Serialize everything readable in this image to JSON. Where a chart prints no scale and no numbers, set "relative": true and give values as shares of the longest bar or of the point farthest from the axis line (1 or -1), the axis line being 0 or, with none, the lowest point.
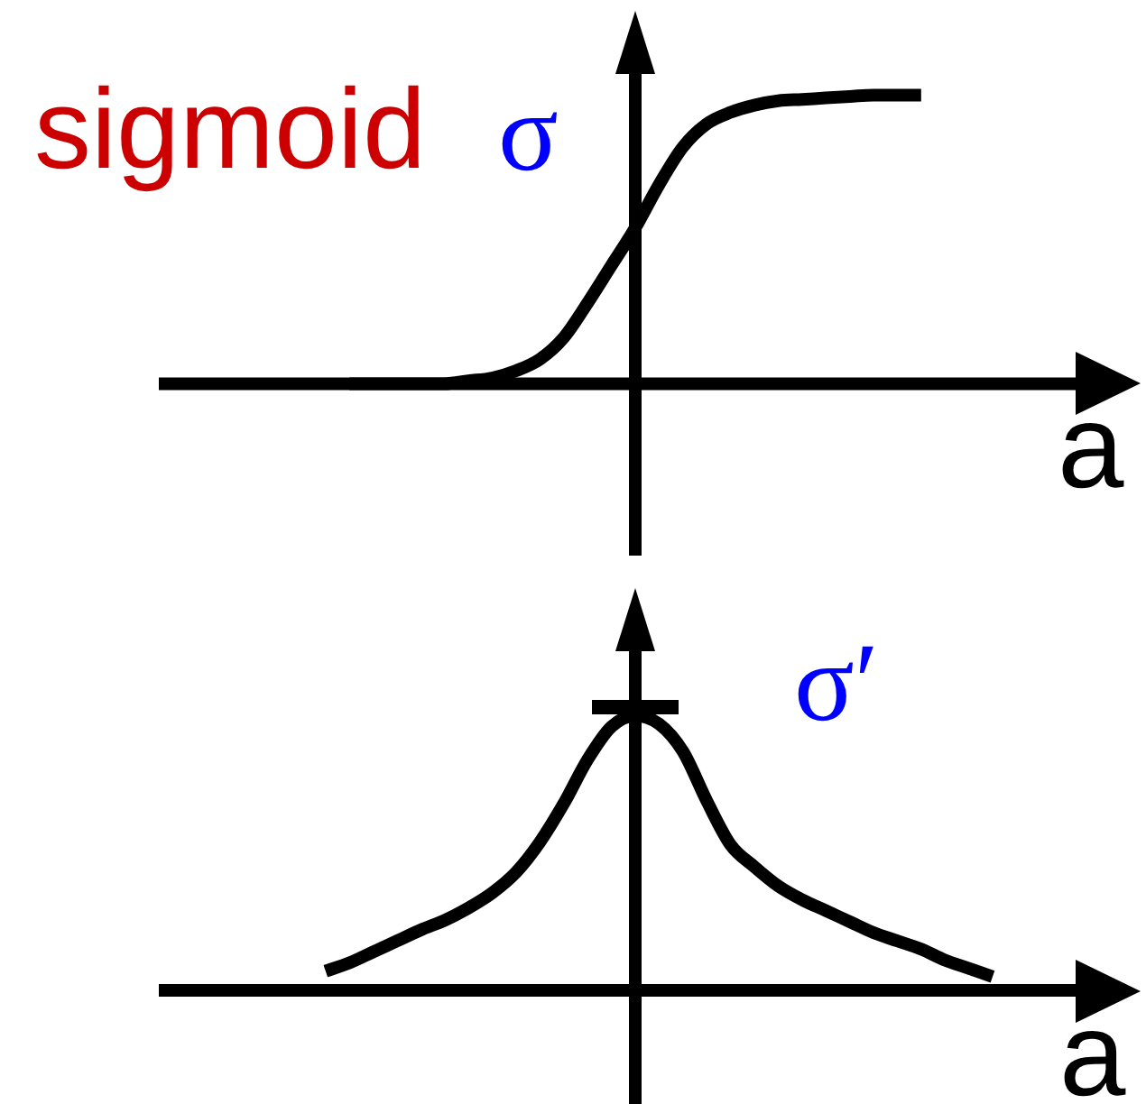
{
  "chart_data": [
    {
      "type": "line",
      "title": "sigmoid",
      "ylabel": "σ",
      "xlabel": "a",
      "relative": true,
      "marker": "none",
      "line_style": "solid",
      "tick_labels": false,
      "categories": [
        null,
        null,
        null,
        null,
        null,
        null,
        null,
        null,
        null,
        null,
        null,
        null,
        null,
        null,
        null,
        null,
        null,
        null,
        null,
        null,
        null,
        null,
        null,
        null,
        null,
        null,
        null,
        null,
        null,
        null,
        null,
        null,
        null,
        null,
        null,
        null,
        null,
        null,
        null,
        null,
        null
      ],
      "series": [
        {
          "color": "#000000",
          "values": [
            null,
            null,
            null,
            null,
            null,
            null,
            null,
            null,
            0,
            0,
            0,
            0,
            0,
            0.01,
            0.02,
            0.045,
            0.085,
            0.16,
            0.28,
            0.41,
            0.54,
            0.69,
            0.82,
            0.9,
            0.94,
            0.965,
            0.98,
            0.985,
            0.99,
            0.995,
            1,
            1,
            1,
            null,
            null,
            null,
            null,
            null,
            null,
            null,
            null
          ]
        }
      ]
    },
    {
      "type": "line",
      "ylabel": "σ′",
      "xlabel": "a",
      "relative": true,
      "marker": "none",
      "line_style": "solid",
      "tick_labels": false,
      "categories": [
        null,
        null,
        null,
        null,
        null,
        null,
        null,
        null,
        null,
        null,
        null,
        null,
        null,
        null,
        null,
        null,
        null,
        null,
        null,
        null,
        null,
        null,
        null,
        null,
        null,
        null,
        null,
        null,
        null,
        null,
        null,
        null,
        null,
        null,
        null,
        null,
        null,
        null,
        null,
        null,
        null
      ],
      "series": [
        {
          "color": "#000000",
          "values": [
            null,
            null,
            null,
            null,
            null,
            null,
            null,
            0.07,
            0.1,
            0.14,
            0.18,
            0.22,
            0.255,
            0.3,
            0.355,
            0.43,
            0.54,
            0.68,
            0.84,
            0.96,
            1,
            0.97,
            0.87,
            0.69,
            0.53,
            0.45,
            0.38,
            0.33,
            0.29,
            0.25,
            0.21,
            0.18,
            0.15,
            0.11,
            0.08,
            0.05,
            null,
            null,
            null,
            null,
            null
          ]
        }
      ]
    }
  ]
}
